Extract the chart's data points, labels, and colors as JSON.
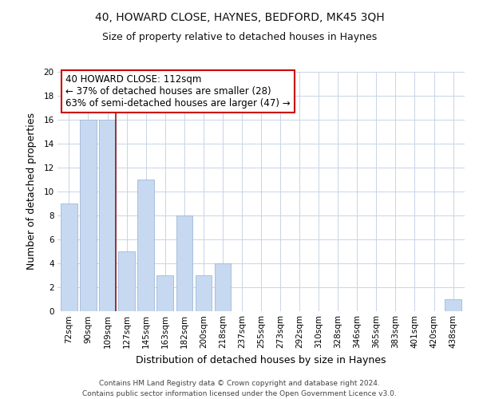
{
  "title": "40, HOWARD CLOSE, HAYNES, BEDFORD, MK45 3QH",
  "subtitle": "Size of property relative to detached houses in Haynes",
  "xlabel": "Distribution of detached houses by size in Haynes",
  "ylabel": "Number of detached properties",
  "categories": [
    "72sqm",
    "90sqm",
    "109sqm",
    "127sqm",
    "145sqm",
    "163sqm",
    "182sqm",
    "200sqm",
    "218sqm",
    "237sqm",
    "255sqm",
    "273sqm",
    "292sqm",
    "310sqm",
    "328sqm",
    "346sqm",
    "365sqm",
    "383sqm",
    "401sqm",
    "420sqm",
    "438sqm"
  ],
  "values": [
    9,
    16,
    16,
    5,
    11,
    3,
    8,
    3,
    4,
    0,
    0,
    0,
    0,
    0,
    0,
    0,
    0,
    0,
    0,
    0,
    1
  ],
  "bar_color": "#c6d9f0",
  "bar_edge_color": "#a0b8d8",
  "property_line_index": 2,
  "property_line_color": "#8b1a1a",
  "ylim": [
    0,
    20
  ],
  "yticks": [
    0,
    2,
    4,
    6,
    8,
    10,
    12,
    14,
    16,
    18,
    20
  ],
  "annotation_text_line1": "40 HOWARD CLOSE: 112sqm",
  "annotation_text_line2": "← 37% of detached houses are smaller (28)",
  "annotation_text_line3": "63% of semi-detached houses are larger (47) →",
  "annotation_box_color": "#ffffff",
  "annotation_box_edge": "#cc0000",
  "footer_line1": "Contains HM Land Registry data © Crown copyright and database right 2024.",
  "footer_line2": "Contains public sector information licensed under the Open Government Licence v3.0.",
  "bg_color": "#ffffff",
  "grid_color": "#c8d4e8",
  "title_fontsize": 10,
  "subtitle_fontsize": 9,
  "axis_label_fontsize": 9,
  "tick_fontsize": 7.5,
  "annotation_fontsize": 8.5,
  "footer_fontsize": 6.5
}
